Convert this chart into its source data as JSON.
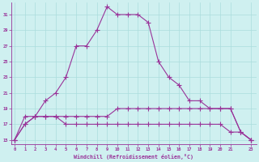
{
  "xlabel": "Windchill (Refroidissement éolien,°C)",
  "bg_color": "#cff0f0",
  "grid_color": "#aadddd",
  "line_color": "#993399",
  "x_hours": [
    0,
    1,
    2,
    3,
    4,
    5,
    6,
    7,
    8,
    9,
    10,
    11,
    12,
    13,
    14,
    15,
    16,
    17,
    18,
    19,
    20,
    21,
    22,
    23
  ],
  "line_main": [
    15,
    17,
    18,
    20,
    21,
    23,
    27,
    27,
    29,
    32,
    31,
    31,
    31,
    30,
    25,
    23,
    22,
    20,
    20,
    19,
    19,
    19,
    16,
    15
  ],
  "line_mid": [
    15,
    18,
    18,
    18,
    18,
    18,
    18,
    18,
    18,
    18,
    19,
    19,
    19,
    19,
    19,
    19,
    19,
    19,
    19,
    19,
    19,
    19,
    16,
    15
  ],
  "line_low": [
    15,
    17,
    18,
    18,
    18,
    17,
    17,
    17,
    17,
    17,
    17,
    17,
    17,
    17,
    17,
    17,
    17,
    17,
    17,
    17,
    17,
    16,
    16,
    15
  ],
  "ylim": [
    14.5,
    32.5
  ],
  "yticks": [
    15,
    17,
    19,
    21,
    23,
    25,
    27,
    29,
    31
  ],
  "xticks": [
    0,
    1,
    2,
    3,
    4,
    5,
    6,
    7,
    8,
    9,
    10,
    11,
    12,
    13,
    14,
    15,
    16,
    17,
    18,
    19,
    20,
    21,
    23
  ],
  "xlim": [
    -0.3,
    23.5
  ]
}
